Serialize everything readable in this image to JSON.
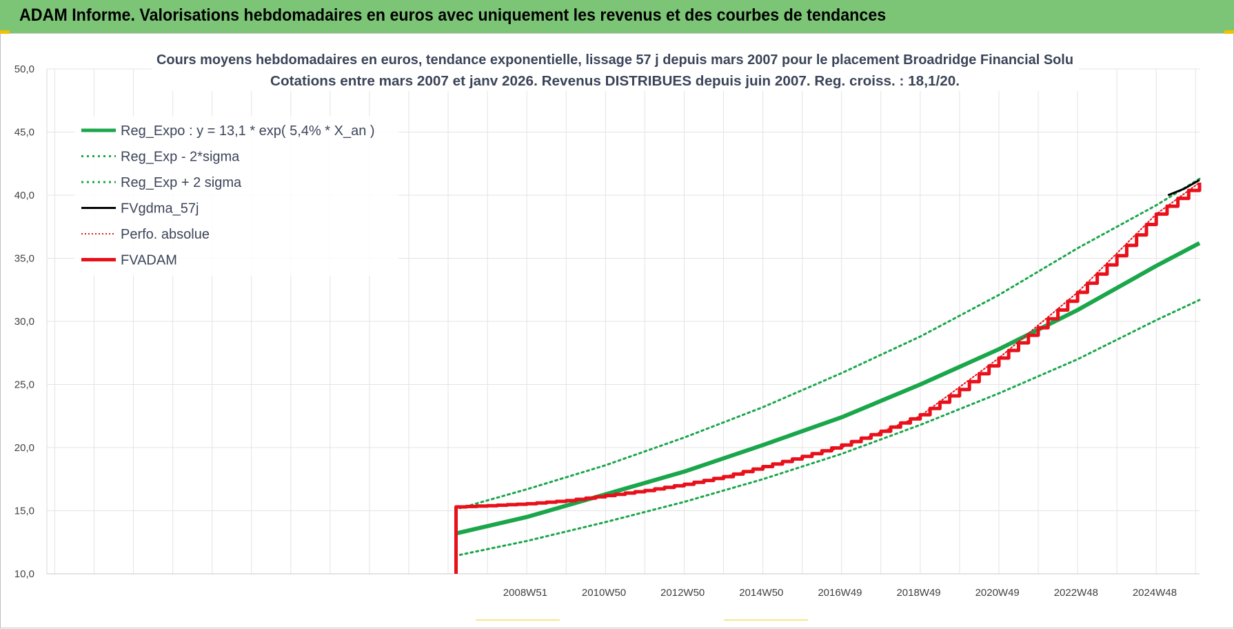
{
  "banner": {
    "title": "ADAM Informe. Valorisations hebdomadaires en euros avec uniquement les revenus et des courbes de tendances"
  },
  "chart_data": {
    "type": "line",
    "title": "Cours moyens hebdomadaires en euros, tendance exponentielle, lissage 57 j depuis mars 2007 pour le placement Broadridge Financial Solu",
    "subtitle": "Cotations entre mars 2007 et janv 2026. Revenus DISTRIBUES depuis juin 2007. Reg. croiss. : 18,1/20.",
    "xlabel": "",
    "ylabel": "",
    "ylim": [
      10,
      50
    ],
    "y_ticks": [
      "10,0",
      "15,0",
      "20,0",
      "25,0",
      "30,0",
      "35,0",
      "40,0",
      "45,0",
      "50,0"
    ],
    "x_range": [
      1996.8,
      2026.1
    ],
    "x_tick_labels": [
      {
        "label": "2008W51",
        "x": 2008.96
      },
      {
        "label": "2010W50",
        "x": 2010.96
      },
      {
        "label": "2012W50",
        "x": 2012.96
      },
      {
        "label": "2014W50",
        "x": 2014.96
      },
      {
        "label": "2016W49",
        "x": 2016.96
      },
      {
        "label": "2018W49",
        "x": 2018.96
      },
      {
        "label": "2020W49",
        "x": 2020.96
      },
      {
        "label": "2022W48",
        "x": 2022.96
      },
      {
        "label": "2024W48",
        "x": 2024.96
      }
    ],
    "grid": true,
    "legend_position": "top-left",
    "series": [
      {
        "name": "Reg_Expo : y = 13,1 * exp( 5,4% *  X_an )",
        "color": "#1aa64a",
        "style": "solid",
        "width": 6,
        "points": [
          [
            2007.2,
            13.2
          ],
          [
            2009.0,
            14.5
          ],
          [
            2011.0,
            16.3
          ],
          [
            2013.0,
            18.1
          ],
          [
            2015.0,
            20.2
          ],
          [
            2017.0,
            22.4
          ],
          [
            2019.0,
            25.0
          ],
          [
            2021.0,
            27.8
          ],
          [
            2023.0,
            30.9
          ],
          [
            2025.0,
            34.4
          ],
          [
            2026.1,
            36.2
          ]
        ]
      },
      {
        "name": "Reg_Exp - 2*sigma",
        "color": "#1aa64a",
        "style": "dotted",
        "width": 3,
        "points": [
          [
            2007.3,
            11.5
          ],
          [
            2009.0,
            12.6
          ],
          [
            2011.0,
            14.1
          ],
          [
            2013.0,
            15.7
          ],
          [
            2015.0,
            17.5
          ],
          [
            2017.0,
            19.5
          ],
          [
            2019.0,
            21.8
          ],
          [
            2021.0,
            24.3
          ],
          [
            2023.0,
            27.0
          ],
          [
            2025.0,
            30.1
          ],
          [
            2026.1,
            31.7
          ]
        ]
      },
      {
        "name": "Reg_Exp + 2 sigma",
        "color": "#1aa64a",
        "style": "dotted",
        "width": 3,
        "points": [
          [
            2007.3,
            15.2
          ],
          [
            2009.0,
            16.7
          ],
          [
            2011.0,
            18.6
          ],
          [
            2013.0,
            20.8
          ],
          [
            2015.0,
            23.2
          ],
          [
            2017.0,
            25.9
          ],
          [
            2019.0,
            28.8
          ],
          [
            2021.0,
            32.1
          ],
          [
            2023.0,
            35.8
          ],
          [
            2025.0,
            39.2
          ],
          [
            2026.1,
            41.3
          ]
        ]
      },
      {
        "name": "FVgdma_57j",
        "color": "#000000",
        "style": "solid",
        "width": 3,
        "points": [
          [
            2025.3,
            40.0
          ],
          [
            2025.7,
            40.5
          ],
          [
            2026.1,
            41.2
          ]
        ]
      },
      {
        "name": "Perfo. absolue",
        "color": "#e8101a",
        "style": "dotted",
        "width": 2,
        "points": [
          [
            2007.2,
            15.2
          ],
          [
            2009.0,
            15.5
          ],
          [
            2011.0,
            16.1
          ],
          [
            2013.0,
            17.0
          ],
          [
            2015.0,
            18.4
          ],
          [
            2017.0,
            20.0
          ],
          [
            2019.0,
            22.5
          ],
          [
            2021.0,
            27.1
          ],
          [
            2023.0,
            32.3
          ],
          [
            2025.0,
            38.5
          ],
          [
            2026.1,
            41.0
          ]
        ]
      },
      {
        "name": "FVADAM",
        "color": "#e8101a",
        "style": "solid",
        "width": 5,
        "points": [
          [
            2007.2,
            10.0
          ],
          [
            2007.2,
            15.3
          ],
          [
            2008.0,
            15.4
          ],
          [
            2009.0,
            15.55
          ],
          [
            2010.0,
            15.8
          ],
          [
            2011.0,
            16.2
          ],
          [
            2012.0,
            16.6
          ],
          [
            2013.0,
            17.1
          ],
          [
            2014.0,
            17.7
          ],
          [
            2015.0,
            18.5
          ],
          [
            2016.0,
            19.3
          ],
          [
            2017.0,
            20.2
          ],
          [
            2018.0,
            21.3
          ],
          [
            2019.0,
            22.6
          ],
          [
            2020.0,
            24.6
          ],
          [
            2021.0,
            27.1
          ],
          [
            2022.0,
            29.5
          ],
          [
            2023.0,
            32.3
          ],
          [
            2024.0,
            35.2
          ],
          [
            2025.0,
            38.5
          ],
          [
            2026.1,
            41.0
          ]
        ]
      }
    ]
  }
}
